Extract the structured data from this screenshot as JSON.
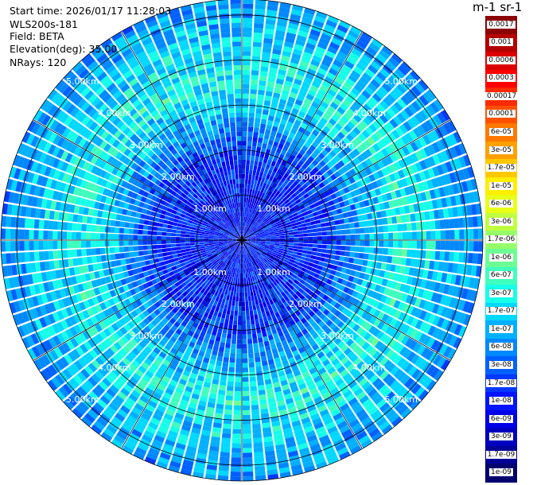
{
  "header": {
    "start_time": "Start time: 2026/01/17 11:28:03",
    "instrument": "WLS200s-181",
    "field": "Field: BETA",
    "elevation": "Elevation(deg): 35.00",
    "nrays": "NRays: 120"
  },
  "colorbar": {
    "unit_label": "m-1 sr-1",
    "labels": [
      "0.0017",
      "0.001",
      "0.0006",
      "0.0003",
      "0.00017",
      "0.0001",
      "6e-05",
      "3e-05",
      "1.7e-05",
      "1e-05",
      "6e-06",
      "3e-06",
      "1.7e-06",
      "1e-06",
      "6e-07",
      "3e-07",
      "1.7e-07",
      "1e-07",
      "6e-08",
      "3e-08",
      "1.7e-08",
      "1e-08",
      "6e-09",
      "3e-09",
      "1.7e-09",
      "1e-09"
    ],
    "colors": [
      "#8b0000",
      "#b40000",
      "#dc0000",
      "#ff0000",
      "#ff2a00",
      "#ff5000",
      "#ff7800",
      "#ffa000",
      "#ffc800",
      "#ffee00",
      "#e8ff18",
      "#c0ff40",
      "#96ff6a",
      "#6cff94",
      "#40ffbe",
      "#16ffe8",
      "#00d8ff",
      "#00b0ff",
      "#0088ff",
      "#0060ff",
      "#0038ff",
      "#0014ff",
      "#0000e8",
      "#0000c0",
      "#000098",
      "#000070"
    ]
  },
  "chart_data": {
    "type": "ppi",
    "field": "BETA",
    "elevation_deg": 35.0,
    "n_rays": 120,
    "range_rings_km": [
      1,
      2,
      3,
      4,
      5
    ],
    "max_range_km": 5.35,
    "ring_labels": [
      "1.00km",
      "2.00km",
      "3.00km",
      "4.00km",
      "5.00km"
    ],
    "color_scale": "log",
    "value_range": [
      1e-09,
      0.0017
    ],
    "radial_profile": [
      {
        "range_km": 0.0,
        "value": 1e-08
      },
      {
        "range_km": 1.0,
        "value": 1e-08
      },
      {
        "range_km": 2.0,
        "value": 1.7e-08
      },
      {
        "range_km": 2.8,
        "value": 1e-07
      },
      {
        "range_km": 3.6,
        "value": 3e-07
      },
      {
        "range_km": 4.3,
        "value": 1.7e-07
      },
      {
        "range_km": 5.35,
        "value": 6e-08
      }
    ],
    "grid": true
  }
}
